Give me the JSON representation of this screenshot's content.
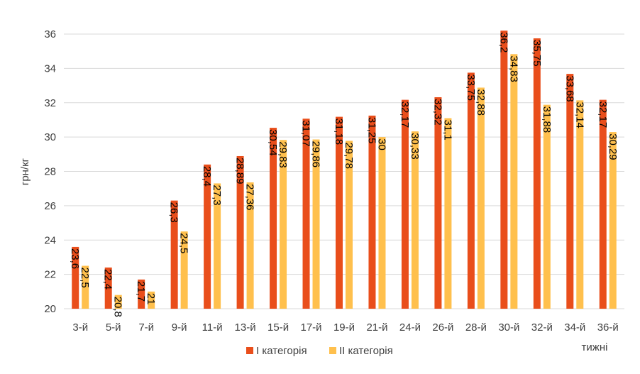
{
  "chart_data": {
    "type": "bar",
    "title": "",
    "ylabel": "грн/кг",
    "xlabel": "тижні",
    "ylim": [
      20,
      36
    ],
    "yticks": [
      20,
      22,
      24,
      26,
      28,
      30,
      32,
      34,
      36
    ],
    "ytick_labels": [
      "20",
      "22",
      "24",
      "26",
      "28",
      "30",
      "32",
      "34",
      "36"
    ],
    "grid": true,
    "legend_position": "bottom",
    "categories": [
      "3-й",
      "5-й",
      "7-й",
      "9-й",
      "11-й",
      "13-й",
      "15-й",
      "17-й",
      "19-й",
      "21-й",
      "24-й",
      "26-й",
      "28-й",
      "30-й",
      "32-й",
      "34-й",
      "36-й"
    ],
    "series": [
      {
        "name": "І категорія",
        "color": "#E94E1B",
        "values": [
          23.6,
          22.4,
          21.7,
          26.3,
          28.4,
          28.89,
          30.54,
          31.07,
          31.18,
          31.25,
          32.17,
          32.32,
          33.75,
          36.2,
          35.75,
          33.68,
          32.17
        ],
        "labels": [
          "23,6",
          "22,4",
          "21,7",
          "26,3",
          "28,4",
          "28,89",
          "30,54",
          "31,07",
          "31,18",
          "31,25",
          "32,17",
          "32,32",
          "33,75",
          "36,2",
          "35,75",
          "33,68",
          "32,17"
        ]
      },
      {
        "name": "ІІ категорія",
        "color": "#FFC04D",
        "values": [
          22.5,
          20.8,
          21,
          24.5,
          27.3,
          27.36,
          29.83,
          29.86,
          29.78,
          30,
          30.33,
          31.1,
          32.88,
          34.83,
          31.88,
          32.14,
          30.29
        ],
        "labels": [
          "22,5",
          "20,8",
          "21",
          "24,5",
          "27,3",
          "27,36",
          "29,83",
          "29,86",
          "29,78",
          "30",
          "30,33",
          "31,1",
          "32,88",
          "34,83",
          "31,88",
          "32,14",
          "30,29"
        ]
      }
    ]
  }
}
